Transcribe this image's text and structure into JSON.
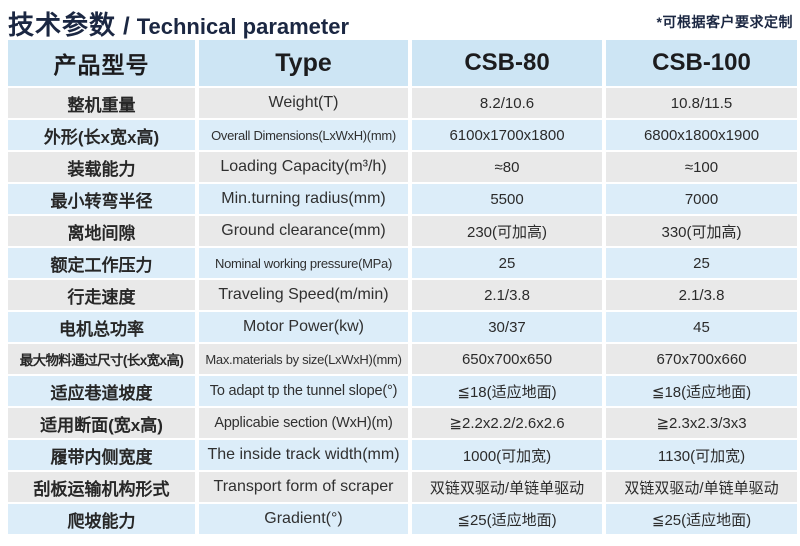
{
  "page": {
    "title_zh": "技术参数",
    "title_divider": "/",
    "title_en": "Technical parameter",
    "note": "*可根据客户要求定制"
  },
  "colors": {
    "header_bg": "#cde5f4",
    "row_blue": "#dcedf9",
    "row_gray": "#e9e9e9",
    "title_text": "#1b2742"
  },
  "table": {
    "columns": [
      "产品型号",
      "Type",
      "CSB-80",
      "CSB-100"
    ],
    "rows": [
      {
        "zh": "整机重量",
        "en": "Weight(T)",
        "csb80": "8.2/10.6",
        "csb100": "10.8/11.5"
      },
      {
        "zh": "外形(长x宽x高)",
        "en": "Overall Dimensions(LxWxH)(mm)",
        "csb80": "6100x1700x1800",
        "csb100": "6800x1800x1900"
      },
      {
        "zh": "装载能力",
        "en": "Loading Capacity(m³/h)",
        "csb80": "≈80",
        "csb100": "≈100"
      },
      {
        "zh": "最小转弯半径",
        "en": "Min.turning radius(mm)",
        "csb80": "5500",
        "csb100": "7000"
      },
      {
        "zh": "离地间隙",
        "en": "Ground clearance(mm)",
        "csb80": "230(可加高)",
        "csb100": "330(可加高)"
      },
      {
        "zh": "额定工作压力",
        "en": "Nominal working pressure(MPa)",
        "csb80": "25",
        "csb100": "25"
      },
      {
        "zh": "行走速度",
        "en": "Traveling Speed(m/min)",
        "csb80": "2.1/3.8",
        "csb100": "2.1/3.8"
      },
      {
        "zh": "电机总功率",
        "en": "Motor Power(kw)",
        "csb80": "30/37",
        "csb100": "45"
      },
      {
        "zh": "最大物料通过尺寸(长x宽x高)",
        "en": "Max.materials by size(LxWxH)(mm)",
        "csb80": "650x700x650",
        "csb100": "670x700x660"
      },
      {
        "zh": "适应巷道坡度",
        "en": "To adapt tp the tunnel slope(°)",
        "csb80": "≦18(适应地面)",
        "csb100": "≦18(适应地面)"
      },
      {
        "zh": "适用断面(宽x高)",
        "en": "Applicabie section (WxH)(m)",
        "csb80": "≧2.2x2.2/2.6x2.6",
        "csb100": "≧2.3x2.3/3x3"
      },
      {
        "zh": "履带内侧宽度",
        "en": "The inside track width(mm)",
        "csb80": "1000(可加宽)",
        "csb100": "1130(可加宽)"
      },
      {
        "zh": "刮板运输机构形式",
        "en": "Transport form of scraper",
        "csb80": "双链双驱动/单链单驱动",
        "csb100": "双链双驱动/单链单驱动"
      },
      {
        "zh": "爬坡能力",
        "en": "Gradient(°)",
        "csb80": "≦25(适应地面)",
        "csb100": "≦25(适应地面)"
      }
    ]
  }
}
